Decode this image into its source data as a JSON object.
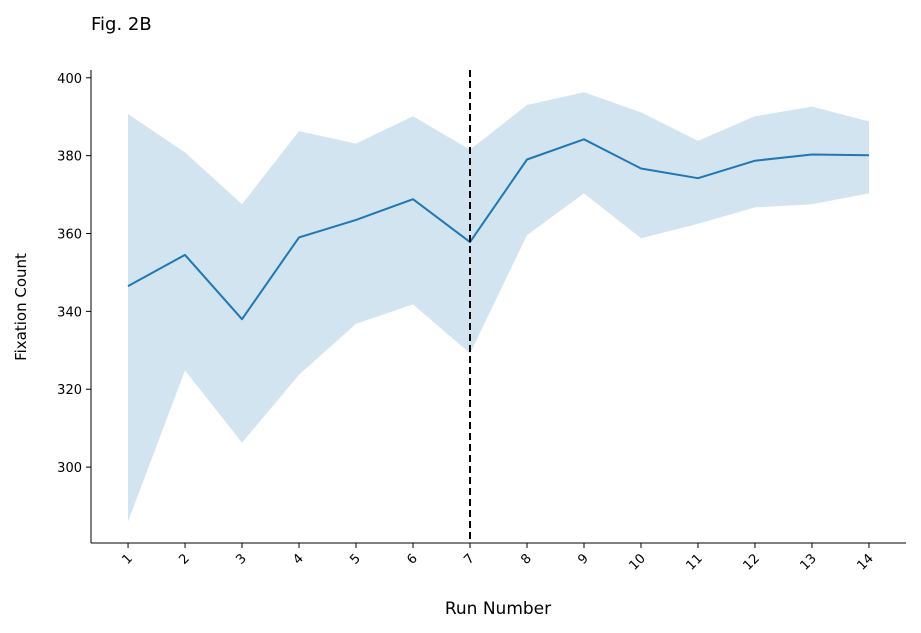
{
  "chart_data": {
    "type": "line",
    "title": "Fig. 2B",
    "xlabel": "Run Number",
    "ylabel": "Fixation Count",
    "x": [
      1,
      2,
      3,
      4,
      5,
      6,
      7,
      8,
      9,
      10,
      11,
      12,
      13,
      14
    ],
    "xticks": [
      "1",
      "2",
      "3",
      "4",
      "5",
      "6",
      "7",
      "8",
      "9",
      "10",
      "11",
      "12",
      "13",
      "14"
    ],
    "yticks": [
      "300",
      "320",
      "340",
      "360",
      "380",
      "400"
    ],
    "xlim": [
      0.35,
      14.65
    ],
    "ylim": [
      280.5,
      402
    ],
    "series": [
      {
        "values": [
          346.5,
          354.5,
          338,
          359,
          363.5,
          368.8,
          357.8,
          379,
          384.2,
          376.7,
          374.2,
          378.7,
          380.3,
          380.1
        ],
        "lower": [
          286.0,
          324.8,
          306.3,
          323.7,
          336.8,
          341.8,
          329.2,
          359.6,
          370.3,
          358.8,
          362.5,
          366.7,
          367.5,
          370.3
        ],
        "upper": [
          390.7,
          380.8,
          367.5,
          386.3,
          383.1,
          390.1,
          381.5,
          393.0,
          396.3,
          391.1,
          383.8,
          390.1,
          392.6,
          388.8
        ]
      }
    ],
    "annotations": [
      {
        "type": "vertical-dashed-line",
        "x": 7
      }
    ],
    "grid": false,
    "colors": {
      "line": "#1f77b4",
      "band": "#1f77b4",
      "vline": "#000000"
    }
  }
}
